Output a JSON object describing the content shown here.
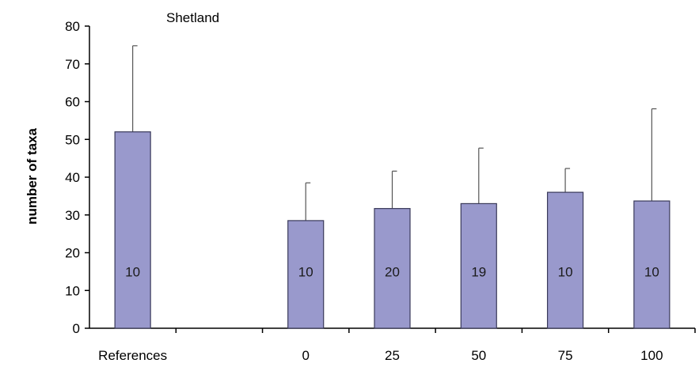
{
  "chart_data": {
    "type": "bar",
    "title": "Shetland",
    "xlabel": "",
    "ylabel": "number of taxa",
    "ylim": [
      0,
      80
    ],
    "yticks": [
      0,
      10,
      20,
      30,
      40,
      50,
      60,
      70,
      80
    ],
    "categories": [
      "References",
      "",
      "0",
      "25",
      "50",
      "75",
      "100"
    ],
    "values": [
      52,
      null,
      28.5,
      31.7,
      33,
      36,
      33.7
    ],
    "error_upper": [
      74.8,
      null,
      38.5,
      41.6,
      47.7,
      42.3,
      58.1
    ],
    "bar_labels": [
      "10",
      "",
      "10",
      "20",
      "19",
      "10",
      "10"
    ],
    "grid": false,
    "colors": {
      "bar_fill": "#9999cc",
      "bar_stroke": "#3a3a5a",
      "axis": "#000000"
    }
  }
}
